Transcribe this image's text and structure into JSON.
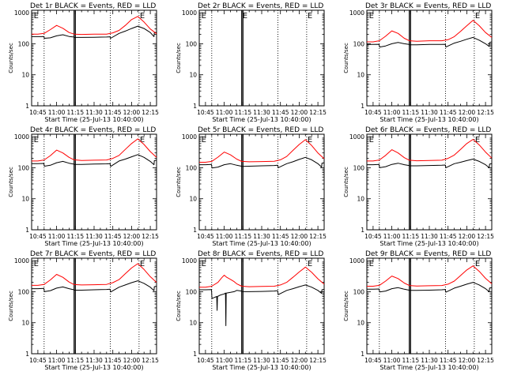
{
  "figure": {
    "colors": {
      "events": "#000000",
      "lld": "#ff0000",
      "frame": "#000000",
      "background": "#ffffff"
    },
    "common": {
      "xlabel": "Start Time (25-Jul-13 10:40:00)",
      "ylabel": "Counts/sec",
      "x_tick_labels": [
        "10:45",
        "11:00",
        "11:15",
        "11:30",
        "11:45",
        "12:00",
        "12:15"
      ],
      "y_tick_labels": [
        "1",
        "10",
        "100",
        "1000"
      ],
      "flag_label": "E"
    }
  },
  "chart_data": [
    {
      "type": "line",
      "title": "Det 1r BLACK = Events, RED = LLD",
      "x_unit": "minutes after 10:40",
      "xlim": [
        0,
        100
      ],
      "ylim": [
        1,
        1200
      ],
      "yscale": "log",
      "dotted_lines_x": [
        10,
        63,
        86
      ],
      "solid_lines_x": [
        34,
        35
      ],
      "flags_x": [
        1,
        86
      ],
      "series": [
        {
          "name": "Events",
          "color": "#000000",
          "x": [
            0,
            5,
            8,
            9.8,
            10.2,
            15,
            20,
            25,
            30,
            33.8,
            34.2,
            40,
            50,
            60,
            62.8,
            63.2,
            70,
            75,
            80,
            85,
            90,
            95,
            98,
            98.2,
            100
          ],
          "y": [
            170,
            170,
            170,
            172,
            150,
            155,
            180,
            195,
            172,
            165,
            160,
            160,
            162,
            165,
            168,
            150,
            215,
            255,
            310,
            370,
            310,
            230,
            170,
            225,
            235
          ]
        },
        {
          "name": "LLD",
          "color": "#ff0000",
          "x": [
            0,
            5,
            10,
            15,
            20,
            25,
            30,
            34,
            40,
            50,
            60,
            65,
            70,
            75,
            80,
            85,
            90,
            95,
            100
          ],
          "y": [
            205,
            205,
            215,
            285,
            390,
            315,
            230,
            205,
            200,
            205,
            205,
            225,
            270,
            390,
            600,
            760,
            500,
            300,
            210
          ]
        }
      ]
    },
    {
      "type": "line",
      "title": "Det 2r BLACK = Events, RED = LLD",
      "x_unit": "minutes after 10:40",
      "xlim": [
        0,
        100
      ],
      "ylim": [
        1,
        1200
      ],
      "yscale": "log",
      "dotted_lines_x": [
        10,
        63,
        86
      ],
      "solid_lines_x": [
        34,
        35
      ],
      "flags_x": [
        1,
        34,
        86
      ],
      "series": []
    },
    {
      "type": "line",
      "title": "Det 3r BLACK = Events, RED = LLD",
      "x_unit": "minutes after 10:40",
      "xlim": [
        0,
        100
      ],
      "ylim": [
        1,
        1200
      ],
      "yscale": "log",
      "dotted_lines_x": [
        10,
        63,
        86
      ],
      "solid_lines_x": [
        34,
        35
      ],
      "flags_x": [
        1,
        86
      ],
      "series": [
        {
          "name": "Events",
          "color": "#000000",
          "x": [
            0,
            5,
            9.8,
            10.2,
            15,
            20,
            25,
            30,
            33.8,
            34.2,
            40,
            50,
            60,
            62.8,
            63.2,
            70,
            75,
            80,
            85,
            90,
            95,
            98,
            98.2,
            100
          ],
          "y": [
            95,
            95,
            96,
            78,
            85,
            100,
            110,
            100,
            95,
            92,
            92,
            95,
            95,
            96,
            78,
            105,
            120,
            140,
            160,
            130,
            100,
            82,
            110,
            115
          ]
        },
        {
          "name": "LLD",
          "color": "#ff0000",
          "x": [
            0,
            5,
            10,
            15,
            20,
            25,
            30,
            34,
            40,
            50,
            60,
            65,
            70,
            75,
            80,
            85,
            90,
            95,
            100
          ],
          "y": [
            115,
            115,
            125,
            175,
            260,
            215,
            150,
            125,
            120,
            125,
            125,
            135,
            170,
            250,
            380,
            570,
            380,
            230,
            160
          ]
        }
      ]
    },
    {
      "type": "line",
      "title": "Det 4r BLACK = Events, RED = LLD",
      "x_unit": "minutes after 10:40",
      "xlim": [
        0,
        100
      ],
      "ylim": [
        1,
        1200
      ],
      "yscale": "log",
      "dotted_lines_x": [
        10,
        63,
        86
      ],
      "solid_lines_x": [
        34,
        35
      ],
      "flags_x": [
        1,
        86
      ],
      "series": [
        {
          "name": "Events",
          "color": "#000000",
          "x": [
            0,
            5,
            9.8,
            10.2,
            15,
            20,
            25,
            30,
            33.8,
            34.2,
            40,
            50,
            60,
            62.8,
            63.2,
            70,
            75,
            80,
            85,
            90,
            95,
            98,
            98.2,
            100
          ],
          "y": [
            135,
            135,
            137,
            112,
            120,
            145,
            160,
            140,
            130,
            128,
            128,
            132,
            133,
            135,
            110,
            165,
            190,
            225,
            265,
            215,
            160,
            125,
            170,
            175
          ]
        },
        {
          "name": "LLD",
          "color": "#ff0000",
          "x": [
            0,
            5,
            10,
            15,
            20,
            25,
            30,
            34,
            40,
            50,
            60,
            65,
            70,
            75,
            80,
            85,
            90,
            95,
            100
          ],
          "y": [
            165,
            165,
            178,
            245,
            370,
            300,
            215,
            180,
            172,
            175,
            178,
            200,
            250,
            390,
            600,
            850,
            560,
            330,
            215
          ]
        }
      ]
    },
    {
      "type": "line",
      "title": "Det 5r BLACK = Events, RED = LLD",
      "x_unit": "minutes after 10:40",
      "xlim": [
        0,
        100
      ],
      "ylim": [
        1,
        1200
      ],
      "yscale": "log",
      "dotted_lines_x": [
        10,
        63,
        86
      ],
      "solid_lines_x": [
        34,
        35
      ],
      "flags_x": [
        1,
        86
      ],
      "series": [
        {
          "name": "Events",
          "color": "#000000",
          "x": [
            0,
            5,
            9.8,
            10.2,
            15,
            20,
            25,
            30,
            33.8,
            34.2,
            40,
            50,
            60,
            62.8,
            63.2,
            70,
            75,
            80,
            85,
            90,
            95,
            98,
            98.2,
            100
          ],
          "y": [
            125,
            125,
            127,
            98,
            105,
            125,
            135,
            120,
            112,
            110,
            112,
            115,
            118,
            120,
            100,
            135,
            155,
            185,
            215,
            180,
            135,
            105,
            140,
            145
          ]
        },
        {
          "name": "LLD",
          "color": "#ff0000",
          "x": [
            0,
            5,
            10,
            15,
            20,
            25,
            30,
            34,
            40,
            50,
            60,
            65,
            70,
            75,
            80,
            85,
            90,
            95,
            100
          ],
          "y": [
            150,
            150,
            160,
            220,
            320,
            260,
            190,
            160,
            155,
            158,
            162,
            180,
            230,
            360,
            560,
            800,
            520,
            300,
            195
          ]
        }
      ]
    },
    {
      "type": "line",
      "title": "Det 6r BLACK = Events, RED = LLD",
      "x_unit": "minutes after 10:40",
      "xlim": [
        0,
        100
      ],
      "ylim": [
        1,
        1200
      ],
      "yscale": "log",
      "dotted_lines_x": [
        10,
        63,
        86
      ],
      "solid_lines_x": [
        34,
        35
      ],
      "flags_x": [
        1,
        86
      ],
      "series": [
        {
          "name": "Events",
          "color": "#000000",
          "x": [
            0,
            5,
            9.8,
            10.2,
            15,
            20,
            25,
            30,
            33.8,
            34.2,
            40,
            50,
            60,
            62.8,
            63.2,
            70,
            75,
            80,
            85,
            90,
            95,
            98,
            98.2,
            100
          ],
          "y": [
            125,
            125,
            127,
            100,
            108,
            128,
            140,
            125,
            118,
            115,
            115,
            118,
            120,
            122,
            100,
            135,
            150,
            170,
            190,
            160,
            125,
            100,
            130,
            135
          ]
        },
        {
          "name": "LLD",
          "color": "#ff0000",
          "x": [
            0,
            5,
            10,
            15,
            20,
            25,
            30,
            34,
            40,
            50,
            60,
            65,
            70,
            75,
            80,
            85,
            90,
            95,
            100
          ],
          "y": [
            165,
            165,
            178,
            250,
            380,
            300,
            210,
            175,
            168,
            172,
            175,
            200,
            255,
            390,
            600,
            820,
            540,
            320,
            205
          ]
        }
      ]
    },
    {
      "type": "line",
      "title": "Det 7r BLACK = Events, RED = LLD",
      "x_unit": "minutes after 10:40",
      "xlim": [
        0,
        100
      ],
      "ylim": [
        1,
        1200
      ],
      "yscale": "log",
      "dotted_lines_x": [
        10,
        63,
        86
      ],
      "solid_lines_x": [
        34,
        35
      ],
      "flags_x": [
        1,
        86
      ],
      "series": [
        {
          "name": "Events",
          "color": "#000000",
          "x": [
            0,
            5,
            9.8,
            10.2,
            15,
            20,
            25,
            30,
            33.8,
            34.2,
            40,
            50,
            60,
            62.8,
            63.2,
            70,
            75,
            80,
            85,
            90,
            95,
            98,
            98.2,
            100
          ],
          "y": [
            125,
            125,
            127,
            100,
            108,
            130,
            142,
            125,
            115,
            112,
            112,
            115,
            118,
            120,
            98,
            140,
            165,
            195,
            225,
            185,
            140,
            108,
            145,
            150
          ]
        },
        {
          "name": "LLD",
          "color": "#ff0000",
          "x": [
            0,
            5,
            10,
            15,
            20,
            25,
            30,
            34,
            40,
            50,
            60,
            65,
            70,
            75,
            80,
            85,
            90,
            95,
            100
          ],
          "y": [
            160,
            160,
            172,
            240,
            360,
            290,
            205,
            170,
            165,
            168,
            172,
            195,
            245,
            380,
            580,
            800,
            520,
            305,
            200
          ]
        }
      ]
    },
    {
      "type": "line",
      "title": "Det 8r BLACK = Events, RED = LLD",
      "x_unit": "minutes after 10:40",
      "xlim": [
        0,
        100
      ],
      "ylim": [
        1,
        1200
      ],
      "yscale": "log",
      "dotted_lines_x": [
        10,
        63,
        86
      ],
      "solid_lines_x": [
        34,
        35
      ],
      "flags_x": [
        1,
        86
      ],
      "series": [
        {
          "name": "Events",
          "color": "#000000",
          "x": [
            0,
            5,
            9.8,
            10.2,
            12,
            14,
            14.3,
            14.6,
            17,
            20,
            21,
            21.3,
            21.6,
            25,
            28,
            30,
            33.8,
            34.2,
            40,
            50,
            60,
            62.8,
            63.2,
            70,
            75,
            80,
            85,
            90,
            95,
            98,
            98.2,
            100
          ],
          "y": [
            115,
            115,
            117,
            60,
            65,
            70,
            25,
            70,
            78,
            85,
            90,
            8,
            90,
            95,
            100,
            110,
            105,
            100,
            100,
            102,
            105,
            108,
            80,
            110,
            125,
            145,
            165,
            140,
            110,
            88,
            115,
            120
          ]
        },
        {
          "name": "LLD",
          "color": "#ff0000",
          "x": [
            0,
            5,
            10,
            15,
            18,
            20,
            22,
            25,
            28,
            30,
            34,
            40,
            50,
            60,
            65,
            70,
            75,
            80,
            85,
            90,
            95,
            100
          ],
          "y": [
            140,
            140,
            150,
            200,
            280,
            340,
            290,
            250,
            210,
            180,
            150,
            145,
            148,
            150,
            165,
            200,
            290,
            430,
            620,
            420,
            260,
            175
          ]
        }
      ]
    },
    {
      "type": "line",
      "title": "Det 9r BLACK = Events, RED = LLD",
      "x_unit": "minutes after 10:40",
      "xlim": [
        0,
        100
      ],
      "ylim": [
        1,
        1200
      ],
      "yscale": "log",
      "dotted_lines_x": [
        10,
        63,
        86
      ],
      "solid_lines_x": [
        34,
        35
      ],
      "flags_x": [
        1,
        86
      ],
      "series": [
        {
          "name": "Events",
          "color": "#000000",
          "x": [
            0,
            5,
            9.8,
            10.2,
            15,
            20,
            25,
            30,
            33.8,
            34.2,
            40,
            50,
            60,
            62.8,
            63.2,
            70,
            75,
            80,
            85,
            90,
            95,
            98,
            98.2,
            100
          ],
          "y": [
            120,
            120,
            122,
            98,
            105,
            125,
            135,
            120,
            112,
            110,
            110,
            112,
            115,
            118,
            96,
            130,
            150,
            175,
            200,
            165,
            125,
            100,
            130,
            135
          ]
        },
        {
          "name": "LLD",
          "color": "#ff0000",
          "x": [
            0,
            5,
            10,
            15,
            20,
            25,
            30,
            34,
            40,
            50,
            60,
            65,
            70,
            75,
            80,
            85,
            90,
            95,
            100
          ],
          "y": [
            150,
            150,
            160,
            220,
            320,
            265,
            190,
            158,
            152,
            155,
            158,
            175,
            220,
            330,
            500,
            680,
            450,
            270,
            180
          ]
        }
      ]
    }
  ]
}
